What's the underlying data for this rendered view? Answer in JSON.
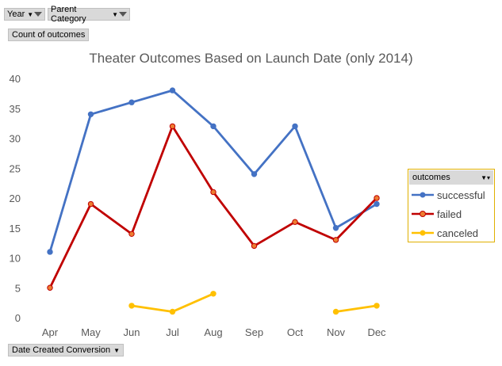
{
  "filters": {
    "year_label": "Year",
    "parent_category_label": "Parent Category",
    "measure_label": "Count of outcomes",
    "axis_field_label": "Date Created Conversion"
  },
  "legend": {
    "title": "outcomes"
  },
  "chart_data": {
    "type": "line",
    "title": "Theater Outcomes Based on Launch Date (only 2014)",
    "xlabel": "",
    "ylabel": "",
    "ylim": [
      0,
      40
    ],
    "yticks": [
      0,
      5,
      10,
      15,
      20,
      25,
      30,
      35,
      40
    ],
    "grid": false,
    "legend_position": "right",
    "categories": [
      "Apr",
      "May",
      "Jun",
      "Jul",
      "Aug",
      "Sep",
      "Oct",
      "Nov",
      "Dec"
    ],
    "series": [
      {
        "name": "successful",
        "color": "#4472c4",
        "values": [
          11,
          34,
          36,
          38,
          32,
          24,
          32,
          15,
          19
        ]
      },
      {
        "name": "failed",
        "color": "#c00000",
        "values": [
          5,
          19,
          14,
          32,
          21,
          12,
          16,
          13,
          20
        ]
      },
      {
        "name": "canceled",
        "color": "#ffc000",
        "values": [
          null,
          null,
          2,
          1,
          4,
          null,
          null,
          1,
          2
        ]
      }
    ]
  }
}
